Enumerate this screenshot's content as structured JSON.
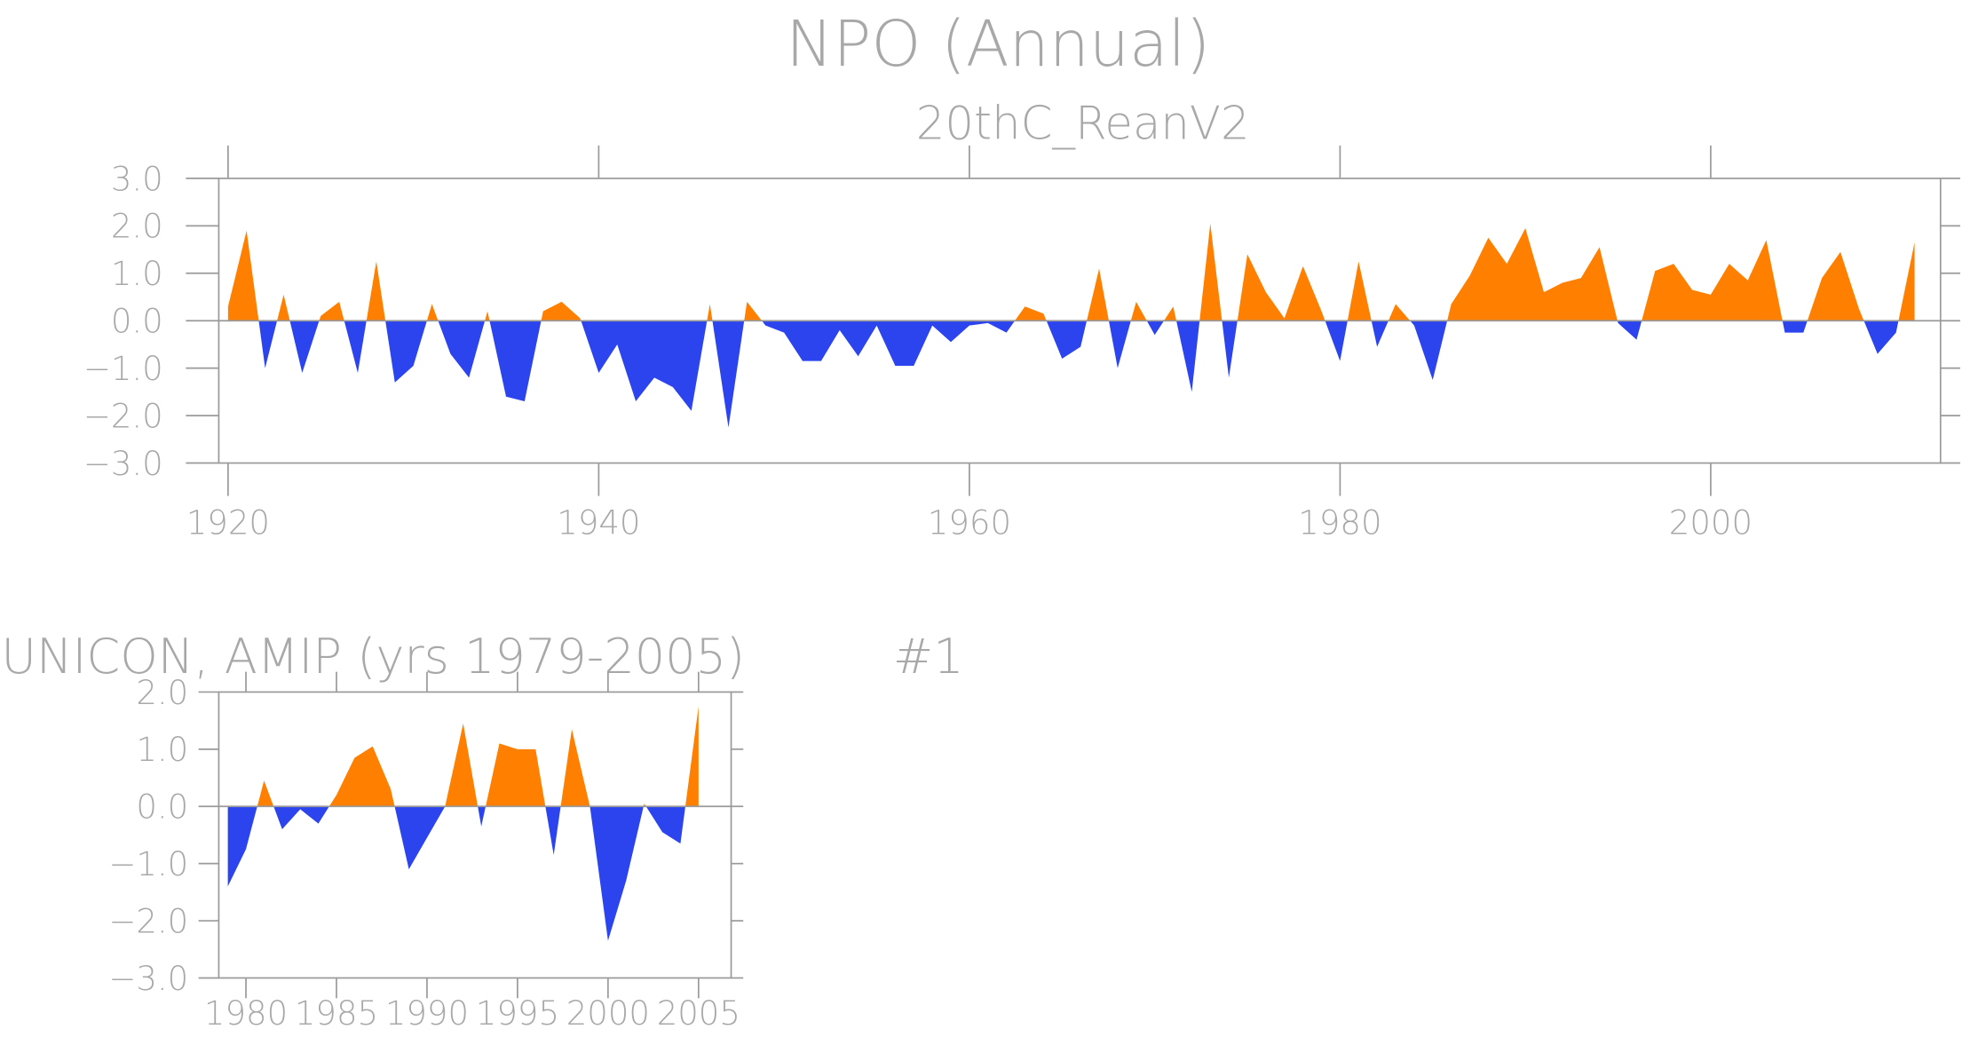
{
  "chart_data": [
    {
      "type": "area",
      "title": "NPO (Annual)",
      "subtitle": "20thC_ReanV2",
      "x": [
        1920,
        1921,
        1922,
        1923,
        1924,
        1925,
        1926,
        1927,
        1928,
        1929,
        1930,
        1931,
        1932,
        1933,
        1934,
        1935,
        1936,
        1937,
        1938,
        1939,
        1940,
        1941,
        1942,
        1943,
        1944,
        1945,
        1946,
        1947,
        1948,
        1949,
        1950,
        1951,
        1952,
        1953,
        1954,
        1955,
        1956,
        1957,
        1958,
        1959,
        1960,
        1961,
        1962,
        1963,
        1964,
        1965,
        1966,
        1967,
        1968,
        1969,
        1970,
        1971,
        1972,
        1973,
        1974,
        1975,
        1976,
        1977,
        1978,
        1979,
        1980,
        1981,
        1982,
        1983,
        1984,
        1985,
        1986,
        1987,
        1988,
        1989,
        1990,
        1991,
        1992,
        1993,
        1994,
        1995,
        1996,
        1997,
        1998,
        1999,
        2000,
        2001,
        2002,
        2003,
        2004,
        2005,
        2006,
        2007,
        2008,
        2009,
        2010,
        2011
      ],
      "values": [
        0.3,
        1.9,
        -1.0,
        0.55,
        -1.1,
        0.1,
        0.4,
        -1.1,
        1.25,
        -1.3,
        -0.95,
        0.35,
        -0.7,
        -1.2,
        0.2,
        -1.6,
        -1.7,
        0.2,
        0.4,
        0.05,
        -1.1,
        -0.5,
        -1.7,
        -1.2,
        -1.4,
        -1.9,
        0.35,
        -2.25,
        0.4,
        -0.1,
        -0.25,
        -0.85,
        -0.85,
        -0.2,
        -0.75,
        -0.1,
        -0.95,
        -0.95,
        -0.1,
        -0.45,
        -0.1,
        -0.05,
        -0.25,
        0.3,
        0.15,
        -0.8,
        -0.55,
        1.1,
        -1.0,
        0.4,
        -0.3,
        0.3,
        -1.5,
        2.05,
        -1.2,
        1.4,
        0.6,
        0.05,
        1.15,
        0.2,
        -0.85,
        1.25,
        -0.55,
        0.35,
        -0.1,
        -1.25,
        0.35,
        0.95,
        1.75,
        1.2,
        1.95,
        0.6,
        0.8,
        0.9,
        1.55,
        -0.05,
        -0.4,
        1.05,
        1.2,
        0.65,
        0.55,
        1.2,
        0.85,
        1.7,
        -0.25,
        -0.25,
        0.9,
        1.45,
        0.25,
        -0.7,
        -0.25,
        1.65
      ],
      "xlim": [
        1919.5,
        2012.4
      ],
      "ylim": [
        -3,
        3
      ],
      "xticks": [
        1920,
        1940,
        1960,
        1980,
        2000
      ],
      "yticks": [
        {
          "value": -3,
          "label": "−3.0"
        },
        {
          "value": -2,
          "label": "−2.0"
        },
        {
          "value": -1,
          "label": "−1.0"
        },
        {
          "value": 0,
          "label": "0.0"
        },
        {
          "value": 1,
          "label": "1.0"
        },
        {
          "value": 2,
          "label": "2.0"
        },
        {
          "value": 3,
          "label": "3.0"
        }
      ],
      "positive_color": "#ff8000",
      "negative_color": "#2b44ee"
    },
    {
      "type": "area",
      "title": "UNICON, AMIP (yrs 1979-2005)",
      "annotation": "#1",
      "x": [
        1979,
        1980,
        1981,
        1982,
        1983,
        1984,
        1985,
        1986,
        1987,
        1988,
        1989,
        1990,
        1991,
        1992,
        1993,
        1994,
        1995,
        1996,
        1997,
        1998,
        1999,
        2000,
        2001,
        2002,
        2003,
        2004,
        2005
      ],
      "values": [
        -1.4,
        -0.75,
        0.45,
        -0.4,
        -0.05,
        -0.3,
        0.2,
        0.85,
        1.05,
        0.3,
        -1.1,
        -0.55,
        0.0,
        1.45,
        -0.35,
        1.1,
        1.0,
        1.0,
        -0.85,
        1.35,
        0.0,
        -2.35,
        -1.3,
        0.05,
        -0.45,
        -0.65,
        1.75
      ],
      "xlim": [
        1978.5,
        2006.8
      ],
      "ylim": [
        -3,
        2
      ],
      "xticks": [
        1980,
        1985,
        1990,
        1995,
        2000,
        2005
      ],
      "yticks": [
        {
          "value": -3,
          "label": "−3.0"
        },
        {
          "value": -2,
          "label": "−2.0"
        },
        {
          "value": -1,
          "label": "−1.0"
        },
        {
          "value": 0,
          "label": "0.0"
        },
        {
          "value": 1,
          "label": "1.0"
        },
        {
          "value": 2,
          "label": "2.0"
        }
      ],
      "positive_color": "#ff8000",
      "negative_color": "#2b44ee"
    }
  ]
}
